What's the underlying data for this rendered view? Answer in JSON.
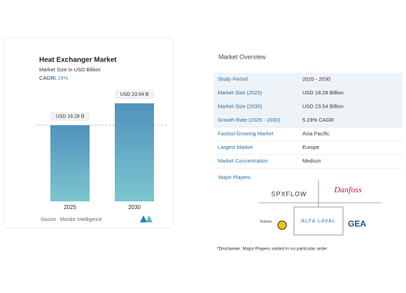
{
  "chart_data": {
    "type": "bar",
    "title": "Heat Exchanger Market",
    "subtitle": "Market Size in USD Billion",
    "cagr_label": "CAGR",
    "cagr_value": "5.19%",
    "categories": [
      "2025",
      "2030"
    ],
    "values": [
      18.28,
      23.54
    ],
    "value_labels": [
      "USD 18.28 B",
      "USD 23.54 B"
    ],
    "color": "#4f93bd",
    "ylim": [
      0,
      25
    ],
    "source": "Source : Mordor Intelligence"
  },
  "overview": {
    "title": "Market Overview",
    "rows": [
      [
        "Study Period",
        "2020 - 2030"
      ],
      [
        "Market Size (2025)",
        "USD 18.28 Billion"
      ],
      [
        "Market Size (2030)",
        "USD 23.54 Billion"
      ],
      [
        "Growth Rate (2025 - 2030)",
        "5.19% CAGR"
      ],
      [
        "Fastest Growing Market",
        "Asia Pacific"
      ],
      [
        "Largest Market",
        "Europe"
      ],
      [
        "Market Concentration",
        "Medium"
      ]
    ],
    "players_title": "Major Players",
    "players": [
      "SPXFLOW",
      "Danfoss",
      "Kelvion",
      "ALFA LAVAL",
      "GEA"
    ],
    "disclaimer": "*Disclaimer: Major Players sorted in no particular order"
  }
}
